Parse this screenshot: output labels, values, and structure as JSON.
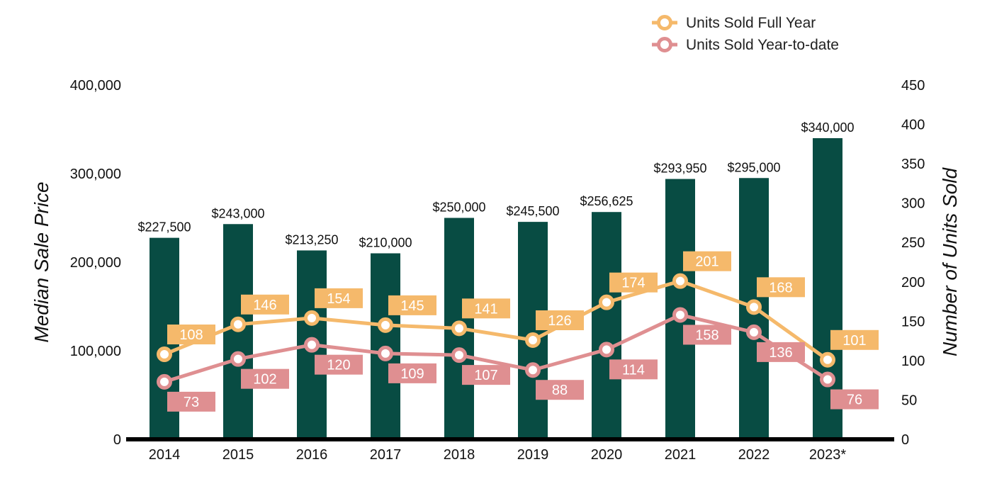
{
  "chart_data": {
    "type": "bar",
    "categories": [
      "2014",
      "2015",
      "2016",
      "2017",
      "2018",
      "2019",
      "2020",
      "2021",
      "2022",
      "2023*"
    ],
    "bars": {
      "values": [
        227500,
        243000,
        213250,
        210000,
        250000,
        245500,
        256625,
        293950,
        295000,
        340000
      ],
      "labels": [
        "$227,500",
        "$243,000",
        "$213,250",
        "$210,000",
        "$250,000",
        "$245,500",
        "$256,625",
        "$293,950",
        "$295,000",
        "$340,000"
      ],
      "axis": "left"
    },
    "series": [
      {
        "name": "Units Sold Full Year",
        "type": "line",
        "axis": "right",
        "values": [
          108,
          146,
          154,
          145,
          141,
          126,
          174,
          201,
          168,
          101
        ]
      },
      {
        "name": "Units Sold Year-to-date",
        "type": "line",
        "axis": "right",
        "values": [
          73,
          102,
          120,
          109,
          107,
          88,
          114,
          158,
          136,
          76
        ]
      }
    ],
    "ylabel": "Median Sale Price",
    "y2label": "Number of Units Sold",
    "ylim": [
      0,
      400000
    ],
    "y2lim": [
      0,
      450
    ],
    "yticks": [
      "0",
      "100,000",
      "200,000",
      "300,000",
      "400,000"
    ],
    "y2ticks": [
      "0",
      "50",
      "100",
      "150",
      "200",
      "250",
      "300",
      "350",
      "400",
      "450"
    ],
    "legend": "top-right",
    "grid": false,
    "colors": {
      "bar": "#084c43",
      "full_year": "#f5b96b",
      "ytd": "#df8f91",
      "axis": "#000000"
    }
  }
}
